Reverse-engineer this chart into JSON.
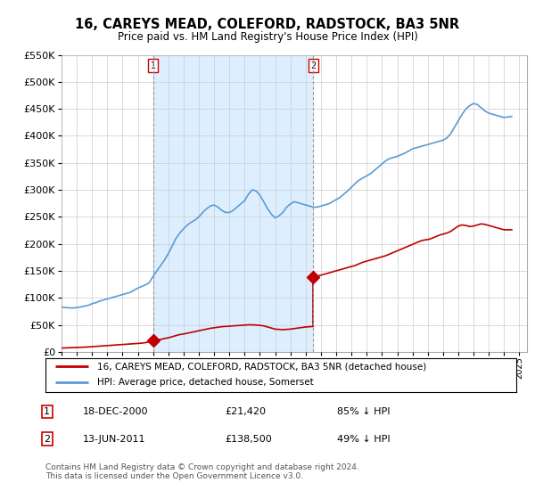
{
  "title": "16, CAREYS MEAD, COLEFORD, RADSTOCK, BA3 5NR",
  "subtitle": "Price paid vs. HM Land Registry's House Price Index (HPI)",
  "legend_line1": "16, CAREYS MEAD, COLEFORD, RADSTOCK, BA3 5NR (detached house)",
  "legend_line2": "HPI: Average price, detached house, Somerset",
  "footnote": "Contains HM Land Registry data © Crown copyright and database right 2024.\nThis data is licensed under the Open Government Licence v3.0.",
  "table": [
    {
      "num": "1",
      "date": "18-DEC-2000",
      "price": "£21,420",
      "pct": "85% ↓ HPI"
    },
    {
      "num": "2",
      "date": "13-JUN-2011",
      "price": "£138,500",
      "pct": "49% ↓ HPI"
    }
  ],
  "marker1": {
    "year": 2001.0,
    "price": 21420
  },
  "marker2": {
    "year": 2011.5,
    "price": 138500
  },
  "vline1_year": 2001.0,
  "vline2_year": 2011.5,
  "ylim": [
    0,
    550000
  ],
  "yticks": [
    0,
    50000,
    100000,
    150000,
    200000,
    250000,
    300000,
    350000,
    400000,
    450000,
    500000,
    550000
  ],
  "hpi_color": "#5b9bd5",
  "price_color": "#c00000",
  "vline_color": "#aaaaaa",
  "shade_color": "#ddeeff",
  "bg_color": "#ffffff",
  "grid_color": "#cccccc",
  "hpi_data": [
    [
      1995.0,
      83000
    ],
    [
      1995.25,
      82000
    ],
    [
      1995.5,
      81500
    ],
    [
      1995.75,
      81000
    ],
    [
      1996.0,
      82000
    ],
    [
      1996.25,
      83000
    ],
    [
      1996.5,
      84500
    ],
    [
      1996.75,
      86000
    ],
    [
      1997.0,
      89000
    ],
    [
      1997.25,
      91000
    ],
    [
      1997.5,
      94000
    ],
    [
      1997.75,
      96000
    ],
    [
      1998.0,
      98000
    ],
    [
      1998.25,
      100000
    ],
    [
      1998.5,
      102000
    ],
    [
      1998.75,
      104000
    ],
    [
      1999.0,
      106000
    ],
    [
      1999.25,
      108000
    ],
    [
      1999.5,
      110000
    ],
    [
      1999.75,
      114000
    ],
    [
      2000.0,
      118000
    ],
    [
      2000.25,
      121000
    ],
    [
      2000.5,
      124000
    ],
    [
      2000.75,
      128000
    ],
    [
      2001.0,
      140000
    ],
    [
      2001.25,
      150000
    ],
    [
      2001.5,
      160000
    ],
    [
      2001.75,
      170000
    ],
    [
      2002.0,
      182000
    ],
    [
      2002.25,
      196000
    ],
    [
      2002.5,
      210000
    ],
    [
      2002.75,
      220000
    ],
    [
      2003.0,
      228000
    ],
    [
      2003.25,
      235000
    ],
    [
      2003.5,
      240000
    ],
    [
      2003.75,
      244000
    ],
    [
      2004.0,
      250000
    ],
    [
      2004.25,
      258000
    ],
    [
      2004.5,
      265000
    ],
    [
      2004.75,
      270000
    ],
    [
      2005.0,
      272000
    ],
    [
      2005.25,
      268000
    ],
    [
      2005.5,
      262000
    ],
    [
      2005.75,
      258000
    ],
    [
      2006.0,
      258000
    ],
    [
      2006.25,
      262000
    ],
    [
      2006.5,
      268000
    ],
    [
      2006.75,
      274000
    ],
    [
      2007.0,
      280000
    ],
    [
      2007.25,
      292000
    ],
    [
      2007.5,
      300000
    ],
    [
      2007.75,
      298000
    ],
    [
      2008.0,
      290000
    ],
    [
      2008.25,
      278000
    ],
    [
      2008.5,
      265000
    ],
    [
      2008.75,
      255000
    ],
    [
      2009.0,
      248000
    ],
    [
      2009.25,
      252000
    ],
    [
      2009.5,
      258000
    ],
    [
      2009.75,
      268000
    ],
    [
      2010.0,
      274000
    ],
    [
      2010.25,
      278000
    ],
    [
      2010.5,
      276000
    ],
    [
      2010.75,
      274000
    ],
    [
      2011.0,
      272000
    ],
    [
      2011.25,
      270000
    ],
    [
      2011.5,
      268000
    ],
    [
      2011.75,
      268000
    ],
    [
      2012.0,
      270000
    ],
    [
      2012.25,
      272000
    ],
    [
      2012.5,
      274000
    ],
    [
      2012.75,
      278000
    ],
    [
      2013.0,
      282000
    ],
    [
      2013.25,
      286000
    ],
    [
      2013.5,
      292000
    ],
    [
      2013.75,
      298000
    ],
    [
      2014.0,
      305000
    ],
    [
      2014.25,
      312000
    ],
    [
      2014.5,
      318000
    ],
    [
      2014.75,
      322000
    ],
    [
      2015.0,
      326000
    ],
    [
      2015.25,
      330000
    ],
    [
      2015.5,
      336000
    ],
    [
      2015.75,
      342000
    ],
    [
      2016.0,
      348000
    ],
    [
      2016.25,
      354000
    ],
    [
      2016.5,
      358000
    ],
    [
      2016.75,
      360000
    ],
    [
      2017.0,
      362000
    ],
    [
      2017.25,
      365000
    ],
    [
      2017.5,
      368000
    ],
    [
      2017.75,
      372000
    ],
    [
      2018.0,
      376000
    ],
    [
      2018.25,
      378000
    ],
    [
      2018.5,
      380000
    ],
    [
      2018.75,
      382000
    ],
    [
      2019.0,
      384000
    ],
    [
      2019.25,
      386000
    ],
    [
      2019.5,
      388000
    ],
    [
      2019.75,
      390000
    ],
    [
      2020.0,
      392000
    ],
    [
      2020.25,
      396000
    ],
    [
      2020.5,
      404000
    ],
    [
      2020.75,
      416000
    ],
    [
      2021.0,
      428000
    ],
    [
      2021.25,
      440000
    ],
    [
      2021.5,
      450000
    ],
    [
      2021.75,
      456000
    ],
    [
      2022.0,
      460000
    ],
    [
      2022.25,
      458000
    ],
    [
      2022.5,
      452000
    ],
    [
      2022.75,
      446000
    ],
    [
      2023.0,
      442000
    ],
    [
      2023.25,
      440000
    ],
    [
      2023.5,
      438000
    ],
    [
      2023.75,
      436000
    ],
    [
      2024.0,
      434000
    ],
    [
      2024.25,
      435000
    ],
    [
      2024.5,
      436000
    ]
  ],
  "price_data_seg1": [
    [
      1995.0,
      7000
    ],
    [
      1995.25,
      7200
    ],
    [
      1995.5,
      7500
    ],
    [
      1995.75,
      7800
    ],
    [
      1996.0,
      8000
    ],
    [
      1996.25,
      8300
    ],
    [
      1996.5,
      8600
    ],
    [
      1996.75,
      9000
    ],
    [
      1997.0,
      9500
    ],
    [
      1997.25,
      10000
    ],
    [
      1997.5,
      10500
    ],
    [
      1997.75,
      11000
    ],
    [
      1998.0,
      11500
    ],
    [
      1998.25,
      12000
    ],
    [
      1998.5,
      12500
    ],
    [
      1998.75,
      13000
    ],
    [
      1999.0,
      13500
    ],
    [
      1999.25,
      14000
    ],
    [
      1999.5,
      14500
    ],
    [
      1999.75,
      15000
    ],
    [
      2000.0,
      15500
    ],
    [
      2000.25,
      16000
    ],
    [
      2000.5,
      17000
    ],
    [
      2000.75,
      18500
    ],
    [
      2001.0,
      21420
    ]
  ],
  "price_data_seg2": [
    [
      2001.0,
      21420
    ],
    [
      2001.25,
      22000
    ],
    [
      2001.5,
      23000
    ],
    [
      2001.75,
      24500
    ],
    [
      2002.0,
      26000
    ],
    [
      2002.25,
      28000
    ],
    [
      2002.5,
      30000
    ],
    [
      2002.75,
      32000
    ],
    [
      2003.0,
      33000
    ],
    [
      2003.25,
      34500
    ],
    [
      2003.5,
      36000
    ],
    [
      2003.75,
      37500
    ],
    [
      2004.0,
      39000
    ],
    [
      2004.25,
      40500
    ],
    [
      2004.5,
      42000
    ],
    [
      2004.75,
      43500
    ],
    [
      2005.0,
      44500
    ],
    [
      2005.25,
      45500
    ],
    [
      2005.5,
      46500
    ],
    [
      2005.75,
      47000
    ],
    [
      2006.0,
      47500
    ],
    [
      2006.25,
      48000
    ],
    [
      2006.5,
      48500
    ],
    [
      2006.75,
      49000
    ],
    [
      2007.0,
      49500
    ],
    [
      2007.25,
      50000
    ],
    [
      2007.5,
      50000
    ],
    [
      2007.75,
      49500
    ],
    [
      2008.0,
      49000
    ],
    [
      2008.25,
      48000
    ],
    [
      2008.5,
      46000
    ],
    [
      2008.75,
      44000
    ],
    [
      2009.0,
      42000
    ],
    [
      2009.25,
      41500
    ],
    [
      2009.5,
      41000
    ],
    [
      2009.75,
      41500
    ],
    [
      2010.0,
      42000
    ],
    [
      2010.25,
      43000
    ],
    [
      2010.5,
      44000
    ],
    [
      2010.75,
      45000
    ],
    [
      2011.0,
      46000
    ],
    [
      2011.25,
      46500
    ],
    [
      2011.5,
      47000
    ]
  ],
  "price_data_seg3": [
    [
      2011.5,
      47000
    ],
    [
      2011.5,
      138500
    ]
  ],
  "price_data_seg4": [
    [
      2011.5,
      138500
    ],
    [
      2011.75,
      140000
    ],
    [
      2012.0,
      142000
    ],
    [
      2012.25,
      144000
    ],
    [
      2012.5,
      146000
    ],
    [
      2012.75,
      148000
    ],
    [
      2013.0,
      150000
    ],
    [
      2013.25,
      152000
    ],
    [
      2013.5,
      154000
    ],
    [
      2013.75,
      156000
    ],
    [
      2014.0,
      158000
    ],
    [
      2014.25,
      160000
    ],
    [
      2014.5,
      163000
    ],
    [
      2014.75,
      166000
    ],
    [
      2015.0,
      168000
    ],
    [
      2015.25,
      170000
    ],
    [
      2015.5,
      172000
    ],
    [
      2015.75,
      174000
    ],
    [
      2016.0,
      176000
    ],
    [
      2016.25,
      178000
    ],
    [
      2016.5,
      181000
    ],
    [
      2016.75,
      184000
    ],
    [
      2017.0,
      187000
    ],
    [
      2017.25,
      190000
    ],
    [
      2017.5,
      193000
    ],
    [
      2017.75,
      196000
    ],
    [
      2018.0,
      199000
    ],
    [
      2018.25,
      202000
    ],
    [
      2018.5,
      205000
    ],
    [
      2018.75,
      207000
    ],
    [
      2019.0,
      208000
    ],
    [
      2019.25,
      210000
    ],
    [
      2019.5,
      213000
    ],
    [
      2019.75,
      216000
    ],
    [
      2020.0,
      218000
    ],
    [
      2020.25,
      220000
    ],
    [
      2020.5,
      223000
    ],
    [
      2020.75,
      228000
    ],
    [
      2021.0,
      233000
    ],
    [
      2021.25,
      235000
    ],
    [
      2021.5,
      234000
    ],
    [
      2021.75,
      232000
    ],
    [
      2022.0,
      233000
    ],
    [
      2022.25,
      235000
    ],
    [
      2022.5,
      237000
    ],
    [
      2022.75,
      236000
    ],
    [
      2023.0,
      234000
    ],
    [
      2023.25,
      232000
    ],
    [
      2023.5,
      230000
    ],
    [
      2023.75,
      228000
    ],
    [
      2024.0,
      226000
    ],
    [
      2024.25,
      226000
    ],
    [
      2024.5,
      226000
    ]
  ]
}
